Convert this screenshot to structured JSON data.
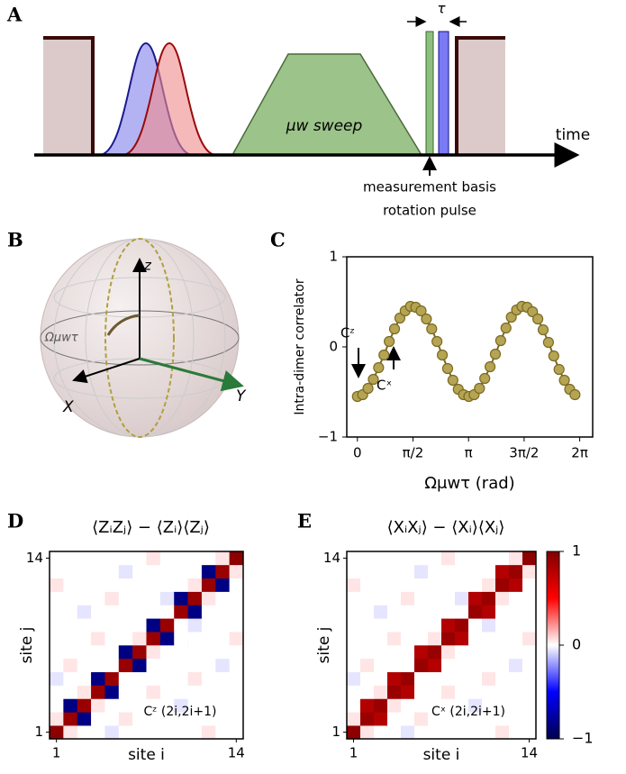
{
  "panel_a": {
    "label": "A",
    "time_label": "time",
    "sweep_label": "μw sweep",
    "tau_label": "τ",
    "pulse_label": [
      "measurement basis",
      "rotation pulse"
    ]
  },
  "panel_b": {
    "label": "B",
    "z_label": "z",
    "x_label": "X",
    "y_label": "Y",
    "angle_label": "Ωμwτ"
  },
  "panel_c_label": "C",
  "panel_d_label": "D",
  "panel_e_label": "E",
  "chart_data": [
    {
      "type": "line",
      "ylabel": "Intra-dimer correlator",
      "xlabel": "Ωμwτ (rad)",
      "color": "#7a6a20",
      "marker_color": "#b5a453",
      "x": [
        0,
        0.15,
        0.3,
        0.45,
        0.6,
        0.75,
        0.9,
        1.05,
        1.2,
        1.35,
        1.5,
        1.65,
        1.8,
        1.95,
        2.1,
        2.25,
        2.4,
        2.55,
        2.7,
        2.85,
        3.0,
        3.15,
        3.3,
        3.45,
        3.6,
        3.75,
        3.9,
        4.05,
        4.2,
        4.35,
        4.5,
        4.65,
        4.8,
        4.95,
        5.1,
        5.25,
        5.4,
        5.55,
        5.7,
        5.85,
        6.0,
        6.15
      ],
      "values": [
        -0.55,
        -0.53,
        -0.46,
        -0.36,
        -0.23,
        -0.09,
        0.06,
        0.2,
        0.32,
        0.4,
        0.45,
        0.44,
        0.4,
        0.31,
        0.2,
        0.06,
        -0.09,
        -0.24,
        -0.37,
        -0.47,
        -0.53,
        -0.55,
        -0.53,
        -0.46,
        -0.35,
        -0.22,
        -0.08,
        0.07,
        0.21,
        0.33,
        0.41,
        0.45,
        0.44,
        0.39,
        0.31,
        0.19,
        0.05,
        -0.1,
        -0.25,
        -0.37,
        -0.47,
        -0.53
      ],
      "xlim": [
        -0.3,
        6.65
      ],
      "ylim": [
        -1,
        1
      ],
      "xticks": [
        0,
        {
          "value": 1.5708,
          "label": "π/2"
        },
        {
          "value": 3.1416,
          "label": "π"
        },
        {
          "value": 4.7124,
          "label": "3π/2"
        },
        {
          "value": 6.2832,
          "label": "2π"
        }
      ],
      "yticks": [
        {
          "value": -1,
          "label": "−1"
        },
        0,
        1
      ],
      "annotations": [
        "Cᶻ",
        "Cˣ"
      ]
    },
    {
      "type": "heatmap",
      "title": "⟨ZᵢZⱼ⟩ − ⟨Zᵢ⟩⟨Zⱼ⟩",
      "xlabel": "site i",
      "ylabel": "site j",
      "colormap": "seismic",
      "clim": [
        -1,
        1
      ],
      "xlim": [
        0.5,
        14.5
      ],
      "ylim": [
        0.5,
        14.5
      ],
      "xticks": [
        1,
        14
      ],
      "yticks": [
        1,
        14
      ],
      "annotation": "Cᶻ (2i,2i+1)",
      "z": [
        [
          0.95,
          0.05,
          0,
          0,
          -0.05,
          0,
          0,
          0,
          0,
          0,
          0,
          0.05,
          0,
          0
        ],
        [
          0.05,
          0.9,
          -0.85,
          0,
          0,
          0.05,
          0,
          0,
          0,
          0,
          0,
          0,
          0,
          0
        ],
        [
          0,
          -0.85,
          0.9,
          0.05,
          0,
          0,
          0,
          0,
          0,
          -0.05,
          0,
          0,
          0,
          0
        ],
        [
          0,
          0,
          0.05,
          0.9,
          -0.85,
          0,
          0,
          0.05,
          0,
          0,
          0,
          0,
          0,
          0
        ],
        [
          -0.05,
          0,
          0,
          -0.85,
          0.9,
          0,
          0,
          0,
          0,
          0,
          0.05,
          0,
          0,
          0
        ],
        [
          0,
          0.05,
          0,
          0,
          0,
          0.9,
          -0.85,
          0,
          0,
          0,
          0,
          0,
          -0.05,
          0
        ],
        [
          0,
          0,
          0,
          0,
          0,
          -0.85,
          0.9,
          0.05,
          0,
          0,
          0,
          0,
          0,
          0
        ],
        [
          0,
          0,
          0,
          0.05,
          0,
          0,
          0.05,
          0.9,
          -0.85,
          0,
          0,
          0,
          0,
          0.05
        ],
        [
          0,
          0,
          0,
          0,
          0,
          0,
          0,
          -0.85,
          0.9,
          0,
          -0.05,
          0,
          0,
          0
        ],
        [
          0,
          0,
          -0.05,
          0,
          0,
          0,
          0,
          0,
          0,
          0.9,
          -0.85,
          0,
          0,
          0
        ],
        [
          0,
          0,
          0,
          0,
          0.05,
          0,
          0,
          0,
          -0.05,
          -0.85,
          0.9,
          0.05,
          0,
          0
        ],
        [
          0.05,
          0,
          0,
          0,
          0,
          0,
          0,
          0,
          0,
          0,
          0.05,
          0.9,
          -0.85,
          0
        ],
        [
          0,
          0,
          0,
          0,
          0,
          -0.05,
          0,
          0,
          0,
          0,
          0,
          -0.85,
          0.9,
          0.05
        ],
        [
          0,
          0,
          0,
          0,
          0,
          0,
          0,
          0.05,
          0,
          0,
          0,
          0,
          0.05,
          0.95
        ]
      ]
    },
    {
      "type": "heatmap",
      "title": "⟨XᵢXⱼ⟩ − ⟨Xᵢ⟩⟨Xⱼ⟩",
      "xlabel": "site i",
      "ylabel": "site j",
      "colormap": "seismic",
      "clim": [
        -1,
        1
      ],
      "xlim": [
        0.5,
        14.5
      ],
      "ylim": [
        0.5,
        14.5
      ],
      "xticks": [
        1,
        14
      ],
      "yticks": [
        1,
        14
      ],
      "annotation": "Cˣ (2i,2i+1)",
      "colorbar": {
        "ticks": [
          {
            "value": -1,
            "label": "−1"
          },
          0,
          1
        ]
      },
      "z": [
        [
          0.95,
          0.05,
          0,
          0,
          -0.05,
          0,
          0,
          0,
          0,
          0,
          0,
          0.05,
          0,
          0
        ],
        [
          0.05,
          0.9,
          0.8,
          0,
          0,
          0.05,
          0,
          0,
          0,
          0,
          0,
          0,
          0,
          0
        ],
        [
          0,
          0.8,
          0.9,
          0.05,
          0,
          0,
          0,
          0,
          0,
          -0.05,
          0,
          0,
          0,
          0
        ],
        [
          0,
          0,
          0.05,
          0.9,
          0.8,
          0,
          0,
          0.05,
          0,
          0,
          0,
          0,
          0,
          0
        ],
        [
          -0.05,
          0,
          0,
          0.8,
          0.9,
          0,
          0,
          0,
          0,
          0,
          0.05,
          0,
          0,
          0
        ],
        [
          0,
          0.05,
          0,
          0,
          0,
          0.9,
          0.8,
          0,
          0,
          0,
          0,
          0,
          -0.05,
          0
        ],
        [
          0,
          0,
          0,
          0,
          0,
          0.8,
          0.9,
          0.05,
          0,
          0,
          0,
          0,
          0,
          0
        ],
        [
          0,
          0,
          0,
          0.05,
          0,
          0,
          0.05,
          0.9,
          0.8,
          0,
          0,
          0,
          0,
          0.05
        ],
        [
          0,
          0,
          0,
          0,
          0,
          0,
          0,
          0.8,
          0.9,
          0,
          -0.05,
          0,
          0,
          0
        ],
        [
          0,
          0,
          -0.05,
          0,
          0,
          0,
          0,
          0,
          0,
          0.9,
          0.8,
          0,
          0,
          0
        ],
        [
          0,
          0,
          0,
          0,
          0.05,
          0,
          0,
          0,
          -0.05,
          0.8,
          0.9,
          0.05,
          0,
          0
        ],
        [
          0.05,
          0,
          0,
          0,
          0,
          0,
          0,
          0,
          0,
          0,
          0.05,
          0.9,
          0.8,
          0
        ],
        [
          0,
          0,
          0,
          0,
          0,
          -0.05,
          0,
          0,
          0,
          0,
          0,
          0.8,
          0.9,
          0.05
        ],
        [
          0,
          0,
          0,
          0,
          0,
          0,
          0,
          0.05,
          0,
          0,
          0,
          0,
          0.05,
          0.95
        ]
      ]
    }
  ]
}
